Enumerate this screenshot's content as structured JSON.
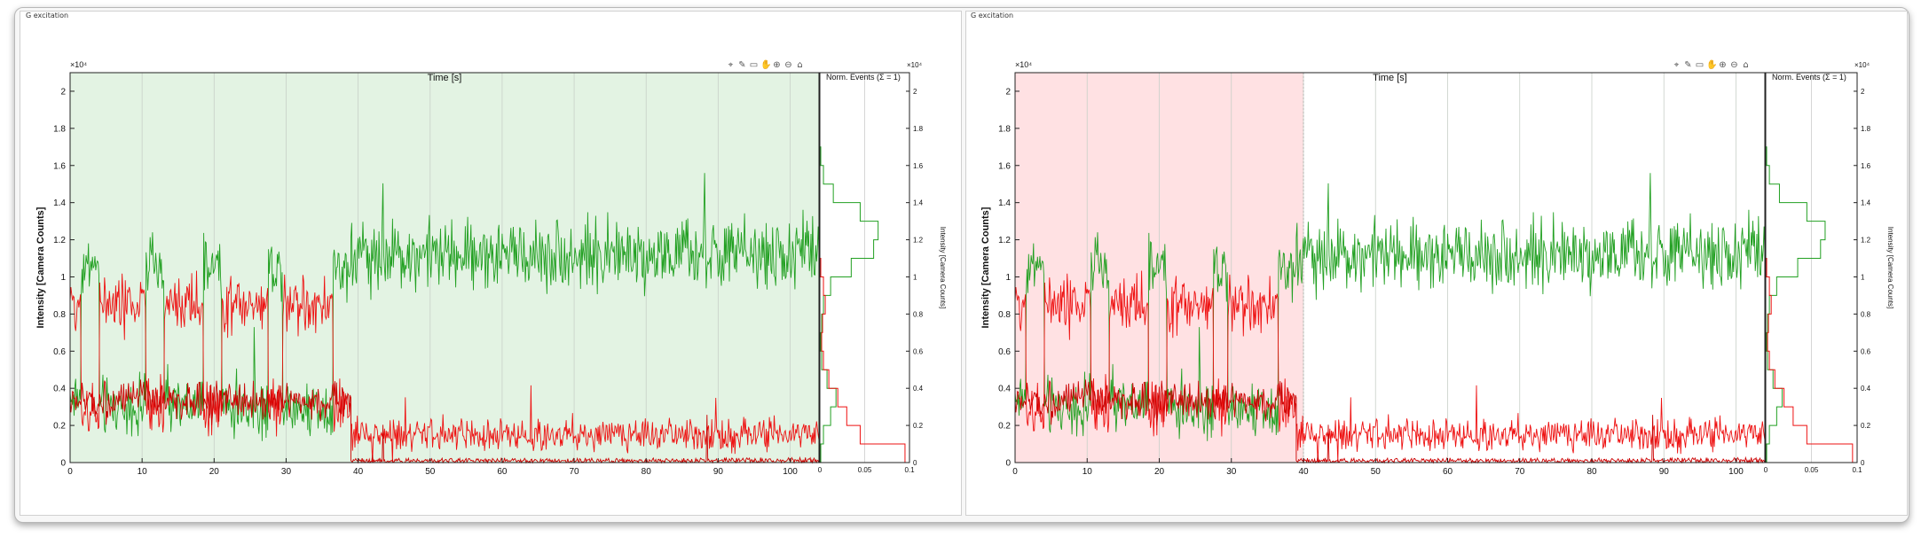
{
  "colors": {
    "donor": "#22a022",
    "acceptor": "#ee1111",
    "acceptor_dark": "#cc0000",
    "shade_left": "#e3f3e3",
    "shade_right": "#ffe1e3"
  },
  "panels": [
    {
      "label": "G excitation",
      "toolbar_icons": [
        "data-cursor-icon",
        "brush-icon",
        "legend-icon",
        "pan-icon",
        "zoom-in-icon",
        "zoom-out-icon",
        "home-icon"
      ],
      "highlight": {
        "from": 0,
        "to": 104,
        "color": "#e3f3e3"
      }
    },
    {
      "label": "G excitation",
      "toolbar_icons": [
        "data-cursor-icon",
        "brush-icon",
        "legend-icon",
        "pan-icon",
        "zoom-in-icon",
        "zoom-out-icon",
        "home-icon"
      ],
      "highlight": {
        "from": 0,
        "to": 40,
        "color": "#ffe1e3"
      }
    }
  ],
  "chart_data": [
    {
      "type": "line",
      "title": "Time [s]",
      "xlabel": "",
      "ylabel": "Intensity [Camera Counts]",
      "xlim": [
        0,
        104
      ],
      "ylim": [
        0,
        2.1
      ],
      "y_exponent": "×10⁴",
      "x_ticks": [
        "0",
        "10",
        "20",
        "30",
        "40",
        "50",
        "60",
        "70",
        "80",
        "90",
        "100"
      ],
      "y_ticks": [
        "0",
        "0.2",
        "0.4",
        "0.6",
        "0.8",
        "1",
        "1.2",
        "1.4",
        "1.6",
        "1.8",
        "2"
      ],
      "grid": "vertical",
      "series": [
        {
          "color": "green",
          "segments": [
            {
              "x0": 0,
              "x1": 39,
              "levels": [
                0.35,
                1.05,
                0.3,
                1.05,
                0.3,
                1.05,
                0.3,
                1.05,
                0.3,
                1.05
              ],
              "switch_points": [
                1.5,
                4,
                10.5,
                13,
                18.5,
                21,
                27.5,
                29.5,
                36.5
              ]
            },
            {
              "x0": 39,
              "x1": 104,
              "mean": 1.12,
              "noise": 0.13
            }
          ]
        },
        {
          "color": "red",
          "segments": [
            {
              "x0": 0,
              "x1": 39,
              "levels": [
                0.85,
                0.3,
                0.85,
                0.3,
                0.85,
                0.3,
                0.85,
                0.3,
                0.85,
                0.3
              ],
              "switch_points": [
                1.5,
                4,
                10.5,
                13,
                18.5,
                21,
                27.5,
                29.5,
                36.5
              ]
            },
            {
              "x0": 39,
              "x1": 104,
              "mean": 0.15,
              "noise": 0.06
            }
          ]
        },
        {
          "color": "red",
          "segments": [
            {
              "x0": 0,
              "x1": 39,
              "mean": 0.33,
              "noise": 0.07
            },
            {
              "x0": 39,
              "x1": 104,
              "mean": 0.01,
              "noise": 0.01
            }
          ]
        }
      ],
      "histogram": {
        "title": "Norm. Events (Σ = 1)",
        "ylabel": "Intensity [Camera Counts]",
        "xlim": [
          0,
          0.1
        ],
        "x_ticks": [
          "0",
          "0.05",
          "0.1"
        ],
        "green": [
          [
            0.0,
            0.001
          ],
          [
            0.1,
            0.004
          ],
          [
            0.2,
            0.012
          ],
          [
            0.3,
            0.018
          ],
          [
            0.4,
            0.008
          ],
          [
            0.5,
            0.002
          ],
          [
            0.6,
            0.001
          ],
          [
            0.7,
            0.002
          ],
          [
            0.8,
            0.004
          ],
          [
            0.9,
            0.012
          ],
          [
            1.0,
            0.035
          ],
          [
            1.1,
            0.06
          ],
          [
            1.2,
            0.065
          ],
          [
            1.3,
            0.045
          ],
          [
            1.4,
            0.015
          ],
          [
            1.5,
            0.004
          ],
          [
            1.6,
            0.001
          ]
        ],
        "red": [
          [
            0.0,
            0.095
          ],
          [
            0.1,
            0.045
          ],
          [
            0.2,
            0.03
          ],
          [
            0.3,
            0.02
          ],
          [
            0.4,
            0.01
          ],
          [
            0.5,
            0.004
          ],
          [
            0.6,
            0.002
          ],
          [
            0.7,
            0.003
          ],
          [
            0.8,
            0.006
          ],
          [
            0.9,
            0.004
          ],
          [
            1.0,
            0.001
          ]
        ]
      }
    },
    {
      "type": "line",
      "title": "Time [s]",
      "xlabel": "",
      "ylabel": "Intensity [Camera Counts]",
      "xlim": [
        0,
        104
      ],
      "ylim": [
        0,
        2.1
      ],
      "y_exponent": "×10⁴",
      "x_ticks": [
        "0",
        "10",
        "20",
        "30",
        "40",
        "50",
        "60",
        "70",
        "80",
        "90",
        "100"
      ],
      "y_ticks": [
        "0",
        "0.2",
        "0.4",
        "0.6",
        "0.8",
        "1",
        "1.2",
        "1.4",
        "1.6",
        "1.8",
        "2"
      ],
      "grid": "vertical",
      "series": [
        {
          "color": "green",
          "segments": [
            {
              "x0": 0,
              "x1": 39,
              "levels": [
                0.35,
                1.05,
                0.3,
                1.05,
                0.3,
                1.05,
                0.3,
                1.05,
                0.3,
                1.05
              ],
              "switch_points": [
                1.5,
                4,
                10.5,
                13,
                18.5,
                21,
                27.5,
                29.5,
                36.5
              ]
            },
            {
              "x0": 39,
              "x1": 104,
              "mean": 1.12,
              "noise": 0.13
            }
          ]
        },
        {
          "color": "red",
          "segments": [
            {
              "x0": 0,
              "x1": 39,
              "levels": [
                0.85,
                0.3,
                0.85,
                0.3,
                0.85,
                0.3,
                0.85,
                0.3,
                0.85,
                0.3
              ],
              "switch_points": [
                1.5,
                4,
                10.5,
                13,
                18.5,
                21,
                27.5,
                29.5,
                36.5
              ]
            },
            {
              "x0": 39,
              "x1": 104,
              "mean": 0.15,
              "noise": 0.06
            }
          ]
        },
        {
          "color": "red",
          "segments": [
            {
              "x0": 0,
              "x1": 39,
              "mean": 0.33,
              "noise": 0.07
            },
            {
              "x0": 39,
              "x1": 104,
              "mean": 0.01,
              "noise": 0.01
            }
          ]
        }
      ],
      "histogram": {
        "title": "Norm. Events (Σ = 1)",
        "ylabel": "Intensity [Camera Counts]",
        "xlim": [
          0,
          0.1
        ],
        "x_ticks": [
          "0",
          "0.05",
          "0.1"
        ],
        "green": [
          [
            0.0,
            0.001
          ],
          [
            0.1,
            0.004
          ],
          [
            0.2,
            0.012
          ],
          [
            0.3,
            0.018
          ],
          [
            0.4,
            0.008
          ],
          [
            0.5,
            0.002
          ],
          [
            0.6,
            0.001
          ],
          [
            0.7,
            0.002
          ],
          [
            0.8,
            0.004
          ],
          [
            0.9,
            0.012
          ],
          [
            1.0,
            0.035
          ],
          [
            1.1,
            0.06
          ],
          [
            1.2,
            0.065
          ],
          [
            1.3,
            0.045
          ],
          [
            1.4,
            0.015
          ],
          [
            1.5,
            0.004
          ],
          [
            1.6,
            0.001
          ]
        ],
        "red": [
          [
            0.0,
            0.095
          ],
          [
            0.1,
            0.045
          ],
          [
            0.2,
            0.03
          ],
          [
            0.3,
            0.02
          ],
          [
            0.4,
            0.01
          ],
          [
            0.5,
            0.004
          ],
          [
            0.6,
            0.002
          ],
          [
            0.7,
            0.003
          ],
          [
            0.8,
            0.006
          ],
          [
            0.9,
            0.004
          ],
          [
            1.0,
            0.001
          ]
        ]
      }
    }
  ]
}
